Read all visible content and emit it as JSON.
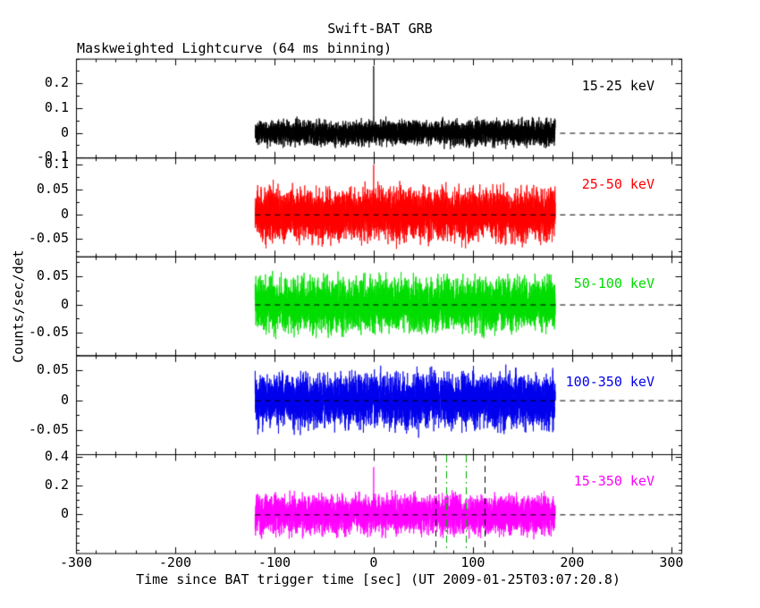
{
  "title": "Swift-BAT GRB",
  "subtitle": "Maskweighted Lightcurve (64 ms binning)",
  "xlabel": "Time since BAT trigger time [sec] (UT 2009-01-25T03:07:20.8)",
  "ylabel": "Counts/sec/det",
  "chart_data": {
    "type": "line",
    "x_range": [
      -300,
      310
    ],
    "x_major_ticks": [
      -300,
      -200,
      -100,
      0,
      100,
      200,
      300
    ],
    "x_tick_labels": [
      "-300",
      "-200",
      "-100",
      "0",
      "100",
      "200",
      "300"
    ],
    "x_minor_step": 20,
    "data_time_range": [
      -119.5,
      183
    ],
    "bin_sec": 0.064,
    "zero_line_dashed": true,
    "burst_spike_time": 0,
    "panels": [
      {
        "label": "15-25 keV",
        "color": "#000000",
        "ylim": [
          -0.1,
          0.3
        ],
        "yticks": [
          -0.1,
          0,
          0.1,
          0.2
        ],
        "ytick_labels": [
          "-0.1",
          "0",
          "0.1",
          "0.2"
        ],
        "y_minor_step": 0.05,
        "noise_sigma_est": 0.024,
        "spike_peak": 0.27
      },
      {
        "label": "25-50 keV",
        "color": "#ff0000",
        "ylim": [
          -0.085,
          0.115
        ],
        "yticks": [
          -0.05,
          0,
          0.05,
          0.1
        ],
        "ytick_labels": [
          "-0.05",
          "0",
          "0.05",
          "0.1"
        ],
        "y_minor_step": 0.025,
        "noise_sigma_est": 0.025,
        "spike_peak": 0.1
      },
      {
        "label": "50-100 keV",
        "color": "#00dd00",
        "ylim": [
          -0.09,
          0.085
        ],
        "yticks": [
          -0.05,
          0,
          0.05
        ],
        "ytick_labels": [
          "-0.05",
          "0",
          "0.05"
        ],
        "y_minor_step": 0.025,
        "noise_sigma_est": 0.022,
        "spike_peak": null
      },
      {
        "label": "100-350 keV",
        "color": "#0000ee",
        "ylim": [
          -0.09,
          0.075
        ],
        "yticks": [
          -0.05,
          0,
          0.05
        ],
        "ytick_labels": [
          "-0.05",
          "0",
          "0.05"
        ],
        "y_minor_step": 0.025,
        "noise_sigma_est": 0.021,
        "spike_peak": null
      },
      {
        "label": "15-350 keV",
        "color": "#ff00ff",
        "ylim": [
          -0.27,
          0.42
        ],
        "yticks": [
          0,
          0.2,
          0.4
        ],
        "ytick_labels": [
          "0",
          "0.2",
          "0.4"
        ],
        "y_minor_step": 0.05,
        "noise_sigma_est": 0.065,
        "spike_peak": 0.33,
        "vlines": [
          {
            "t": 62,
            "style": "dashed",
            "color": "#000000"
          },
          {
            "t": 112,
            "style": "dashed",
            "color": "#000000"
          },
          {
            "t": 73,
            "style": "dashdot",
            "color": "#00aa00"
          },
          {
            "t": 93,
            "style": "dashdot",
            "color": "#00aa00"
          }
        ]
      }
    ]
  }
}
